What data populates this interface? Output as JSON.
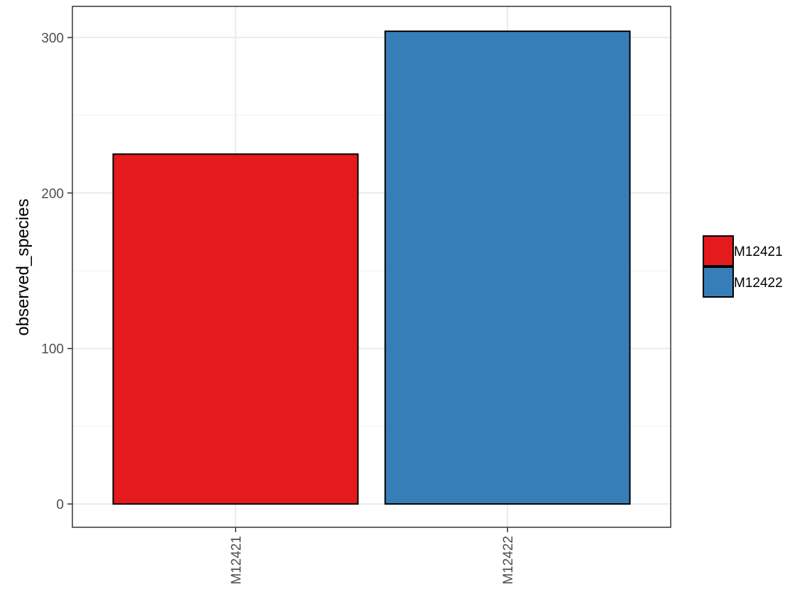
{
  "chart_data": {
    "type": "bar",
    "categories": [
      "M12421",
      "M12422"
    ],
    "values": [
      225,
      304
    ],
    "colors": [
      "#E41A1C",
      "#377EB8"
    ],
    "title": "",
    "xlabel": "",
    "ylabel": "observed_species",
    "ylim": [
      -15,
      320
    ],
    "yticks": [
      0,
      100,
      200,
      300
    ],
    "yticks_minor": [
      50,
      150,
      250
    ],
    "grid": true,
    "x_tick_rotation": "vertical",
    "legend": {
      "placement": "right",
      "entries": [
        {
          "label": "M12421",
          "color": "#E41A1C"
        },
        {
          "label": "M12422",
          "color": "#377EB8"
        }
      ]
    }
  }
}
